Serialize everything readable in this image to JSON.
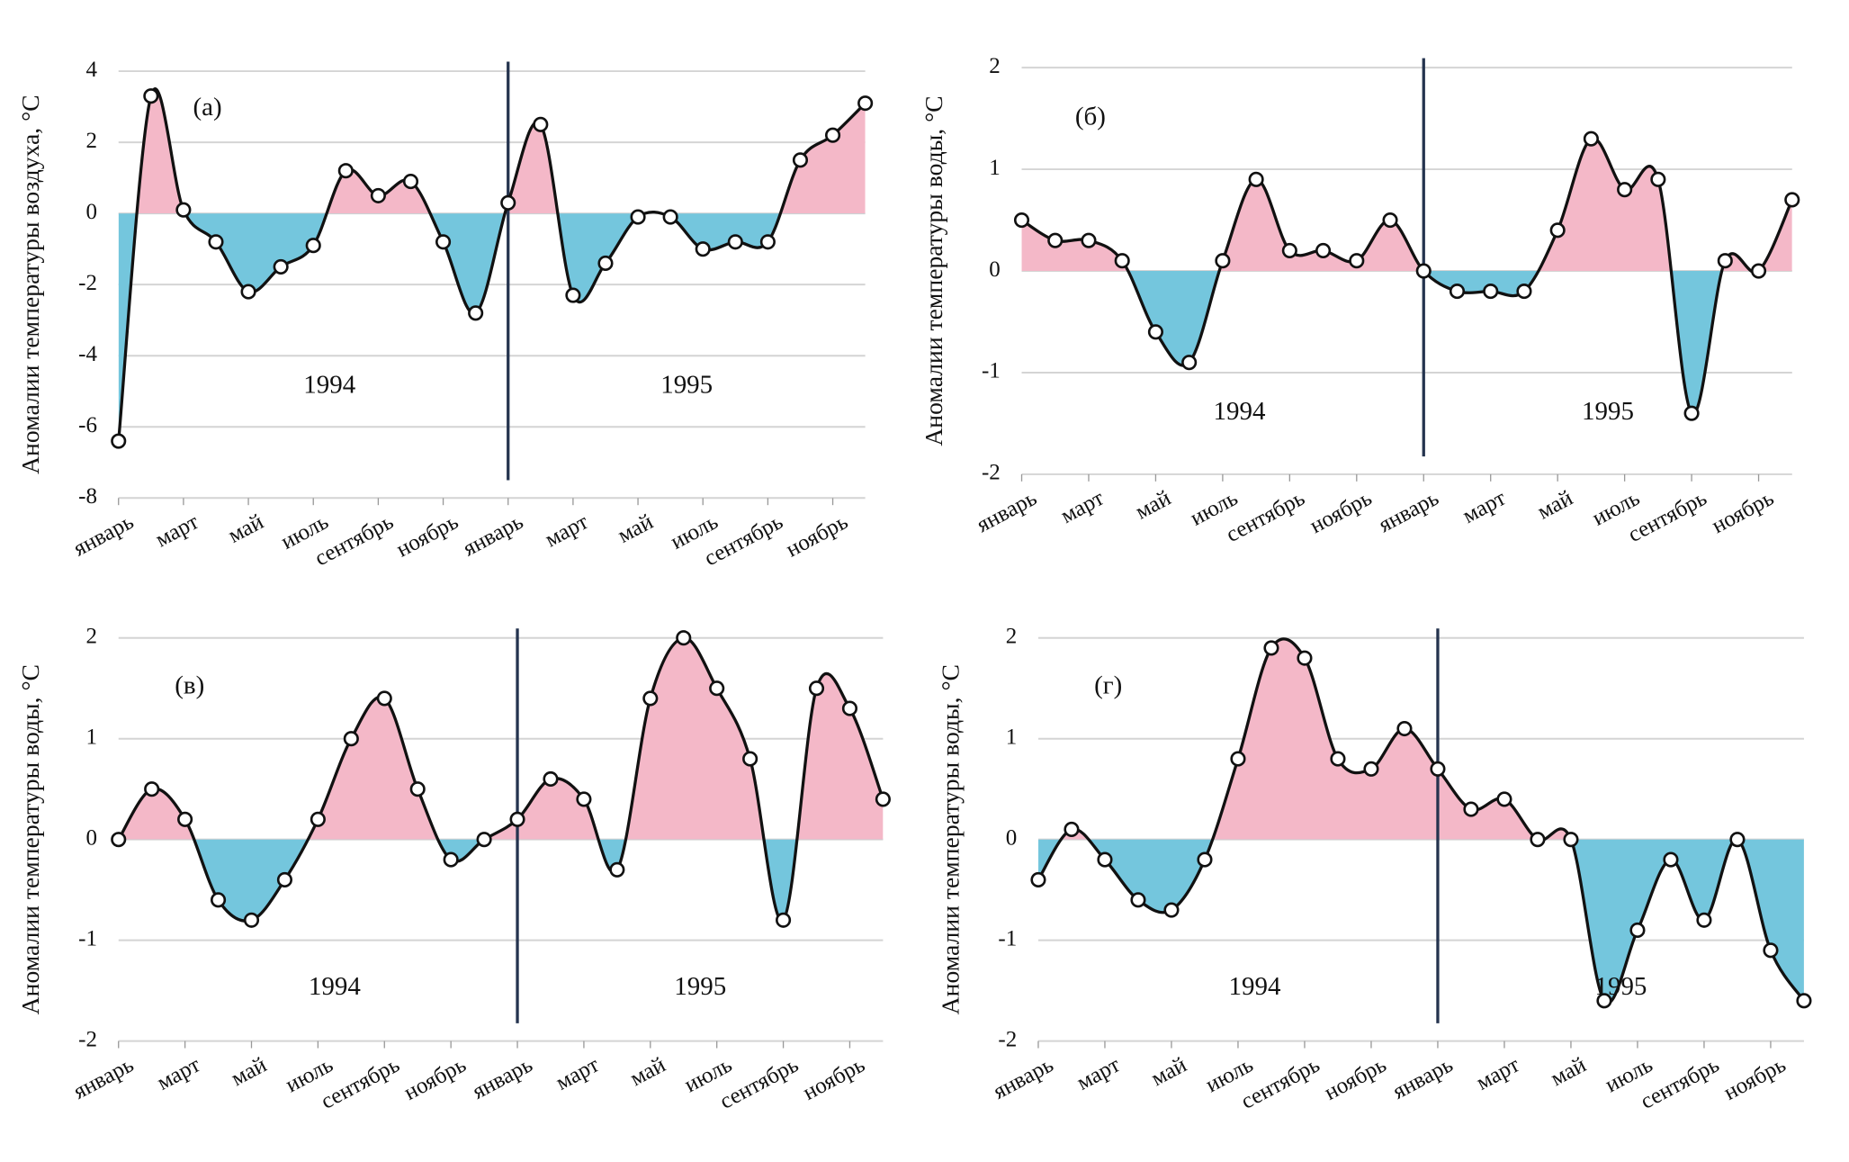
{
  "chart_data": [
    {
      "type": "line",
      "panel_label": "(а)",
      "y_label": "Аномалии температуры воздуха, °С",
      "year_labels": [
        "1994",
        "1995"
      ],
      "categories": [
        "январь",
        null,
        "март",
        null,
        "май",
        null,
        "июль",
        null,
        "сентябрь",
        null,
        "ноябрь",
        null,
        "январь",
        null,
        "март",
        null,
        "май",
        null,
        "июль",
        null,
        "сентябрь",
        null,
        "ноябрь",
        null
      ],
      "values": [
        -6.4,
        3.3,
        0.1,
        -0.8,
        -2.2,
        -1.5,
        -0.9,
        1.2,
        0.5,
        0.9,
        -0.8,
        -2.8,
        0.3,
        2.5,
        -2.3,
        -1.4,
        -0.1,
        -0.1,
        -1.0,
        -0.8,
        -0.8,
        1.5,
        2.2,
        3.1
      ],
      "ylim": [
        -8,
        4
      ],
      "yticks": [
        -8,
        -6,
        -4,
        -2,
        0,
        2,
        4
      ],
      "grid": true,
      "color": "#111111",
      "positive_color": "#f4b8c8",
      "negative_color": "#74c6dd",
      "divider_color": "#25344f",
      "divider_index": 12
    },
    {
      "type": "line",
      "panel_label": "(б)",
      "y_label": "Аномалии температуры воды, °С",
      "year_labels": [
        "1994",
        "1995"
      ],
      "categories": [
        "январь",
        null,
        "март",
        null,
        "май",
        null,
        "июль",
        null,
        "сентябрь",
        null,
        "ноябрь",
        null,
        "январь",
        null,
        "март",
        null,
        "май",
        null,
        "июль",
        null,
        "сентябрь",
        null,
        "ноябрь",
        null
      ],
      "values": [
        0.5,
        0.3,
        0.3,
        0.1,
        -0.6,
        -0.9,
        0.1,
        0.9,
        0.2,
        0.2,
        0.1,
        0.5,
        0.0,
        -0.2,
        -0.2,
        -0.2,
        0.4,
        1.3,
        0.8,
        0.9,
        -1.4,
        0.1,
        0.0,
        0.7
      ],
      "ylim": [
        -2,
        2
      ],
      "yticks": [
        -2,
        -1,
        0,
        1,
        2
      ],
      "grid": true,
      "color": "#111111",
      "positive_color": "#f4b8c8",
      "negative_color": "#74c6dd",
      "divider_color": "#25344f",
      "divider_index": 12
    },
    {
      "type": "line",
      "panel_label": "(в)",
      "y_label": "Аномалии температуры воды, °С",
      "year_labels": [
        "1994",
        "1995"
      ],
      "categories": [
        "январь",
        null,
        "март",
        null,
        "май",
        null,
        "июль",
        null,
        "сентябрь",
        null,
        "ноябрь",
        null,
        "январь",
        null,
        "март",
        null,
        "май",
        null,
        "июль",
        null,
        "сентябрь",
        null,
        "ноябрь",
        null
      ],
      "values": [
        0.0,
        0.5,
        0.2,
        -0.6,
        -0.8,
        -0.4,
        0.2,
        1.0,
        1.4,
        0.5,
        -0.2,
        0.0,
        0.2,
        0.6,
        0.4,
        -0.3,
        1.4,
        2.0,
        1.5,
        0.8,
        -0.8,
        1.5,
        1.3,
        0.4
      ],
      "ylim": [
        -2,
        2
      ],
      "yticks": [
        -2,
        -1,
        0,
        1,
        2
      ],
      "grid": true,
      "color": "#111111",
      "positive_color": "#f4b8c8",
      "negative_color": "#74c6dd",
      "divider_color": "#25344f",
      "divider_index": 12
    },
    {
      "type": "line",
      "panel_label": "(г)",
      "y_label": "Аномалии температуры воды, °С",
      "year_labels": [
        "1994",
        "1995"
      ],
      "categories": [
        "январь",
        null,
        "март",
        null,
        "май",
        null,
        "июль",
        null,
        "сентябрь",
        null,
        "ноябрь",
        null,
        "январь",
        null,
        "март",
        null,
        "май",
        null,
        "июль",
        null,
        "сентябрь",
        null,
        "ноябрь",
        null
      ],
      "values": [
        -0.4,
        0.1,
        -0.2,
        -0.6,
        -0.7,
        -0.2,
        0.8,
        1.9,
        1.8,
        0.8,
        0.7,
        1.1,
        0.7,
        0.3,
        0.4,
        0.0,
        0.0,
        -1.6,
        -0.9,
        -0.2,
        -0.8,
        0.0,
        -1.1,
        -1.6
      ],
      "ylim": [
        -2,
        2
      ],
      "yticks": [
        -2,
        -1,
        0,
        1,
        2
      ],
      "grid": true,
      "color": "#111111",
      "positive_color": "#f4b8c8",
      "negative_color": "#74c6dd",
      "divider_color": "#25344f",
      "divider_index": 12
    }
  ]
}
